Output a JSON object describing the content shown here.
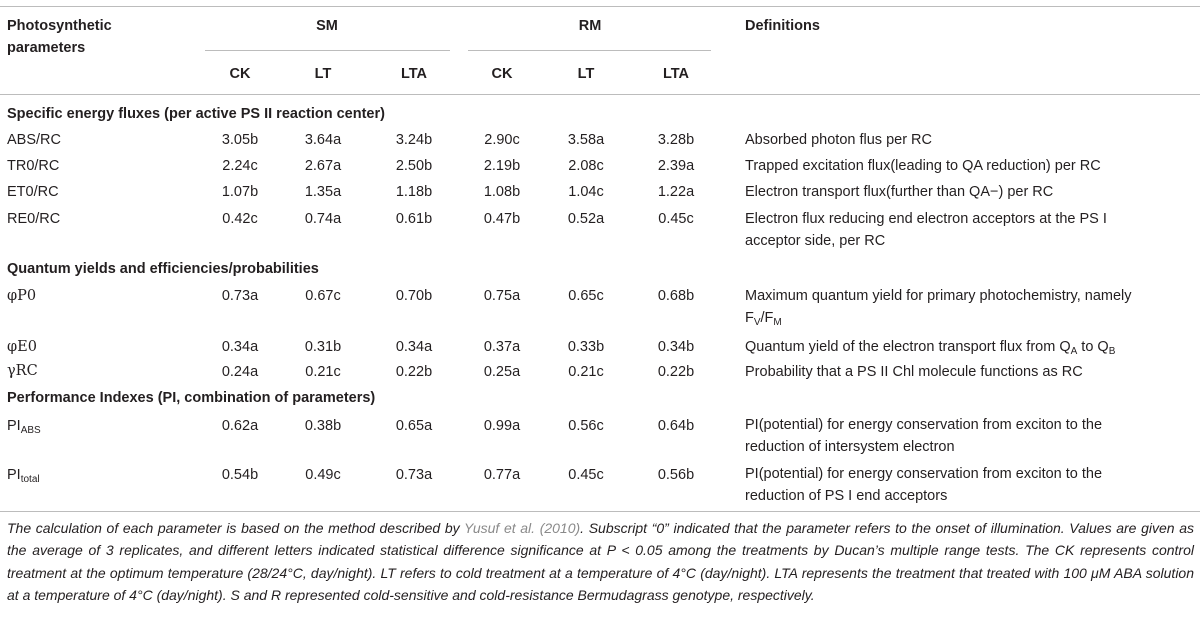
{
  "header": {
    "param_line1": "Photosynthetic",
    "param_line2": "parameters",
    "group_sm": "SM",
    "group_rm": "RM",
    "definitions": "Definitions",
    "sub_cols": [
      "CK",
      "LT",
      "LTA",
      "CK",
      "LT",
      "LTA"
    ]
  },
  "sections": [
    {
      "title": "Specific energy fluxes (per active PS II reaction center)",
      "rows": [
        {
          "param": "ABS/RC",
          "values": [
            "3.05b",
            "3.64a",
            "3.24b",
            "2.90c",
            "3.58a",
            "3.28b"
          ],
          "def1": "Absorbed photon flus per RC",
          "def2": ""
        },
        {
          "param": "TR0/RC",
          "values": [
            "2.24c",
            "2.67a",
            "2.50b",
            "2.19b",
            "2.08c",
            "2.39a"
          ],
          "def1": "Trapped excitation flux(leading to QA reduction) per RC",
          "def2": ""
        },
        {
          "param": "ET0/RC",
          "values": [
            "1.07b",
            "1.35a",
            "1.18b",
            "1.08b",
            "1.04c",
            "1.22a"
          ],
          "def1": "Electron transport flux(further than QA−) per RC",
          "def2": ""
        },
        {
          "param": "RE0/RC",
          "values": [
            "0.42c",
            "0.74a",
            "0.61b",
            "0.47b",
            "0.52a",
            "0.45c"
          ],
          "def1": "Electron flux reducing end electron acceptors at the PS I",
          "def2": "acceptor side, per RC"
        }
      ]
    },
    {
      "title": "Quantum yields and efficiencies/probabilities",
      "rows": [
        {
          "param": "φP0",
          "values": [
            "0.73a",
            "0.67c",
            "0.70b",
            "0.75a",
            "0.65c",
            "0.68b"
          ],
          "def1": "Maximum quantum yield for primary photochemistry, namely",
          "def2_main": "F",
          "def2_sub1": "V",
          "def2_mid": "/F",
          "def2_sub2": "M"
        },
        {
          "param": "φE0",
          "values": [
            "0.34a",
            "0.31b",
            "0.34a",
            "0.37a",
            "0.33b",
            "0.34b"
          ],
          "def1_a": "Quantum yield of the electron transport flux from Q",
          "def1_sub_a": "A",
          "def1_b": " to Q",
          "def1_sub_b": "B"
        },
        {
          "param": "γRC",
          "values": [
            "0.24a",
            "0.21c",
            "0.22b",
            "0.25a",
            "0.21c",
            "0.22b"
          ],
          "def1": "Probability that a PS II Chl molecule functions as RC",
          "def2": ""
        }
      ]
    },
    {
      "title": "Performance Indexes (PI, combination of parameters)",
      "rows": [
        {
          "param_main": "PI",
          "param_sub": "ABS",
          "values": [
            "0.62a",
            "0.38b",
            "0.65a",
            "0.99a",
            "0.56c",
            "0.64b"
          ],
          "def1": "PI(potential) for energy conservation from exciton to the",
          "def2": "reduction of intersystem electron"
        },
        {
          "param_main": "PI",
          "param_sub": "total",
          "values": [
            "0.54b",
            "0.49c",
            "0.73a",
            "0.77a",
            "0.45c",
            "0.56b"
          ],
          "def1": "PI(potential) for energy conservation from exciton to the",
          "def2": "reduction of PS I end acceptors"
        }
      ]
    }
  ],
  "footnote": {
    "part1": "The calculation of each parameter is based on the method described by ",
    "ref": "Yusuf et al. (2010)",
    "part2": ". Subscript “0” indicated that the parameter refers to the onset of illumination. Values are given as the average of 3 replicates, and different letters indicated statistical difference significance at P < 0.05 among the treatments by Ducan’s multiple range tests. The CK represents control treatment at the optimum temperature (28/24°C, day/night). LT refers to cold treatment at a temperature of 4°C (day/night). LTA represents the treatment that treated with 100 μM ABA solution at a temperature of 4°C (day/night). S and R represented cold-sensitive and cold-resistance Bermudagrass genotype, respectively."
  }
}
